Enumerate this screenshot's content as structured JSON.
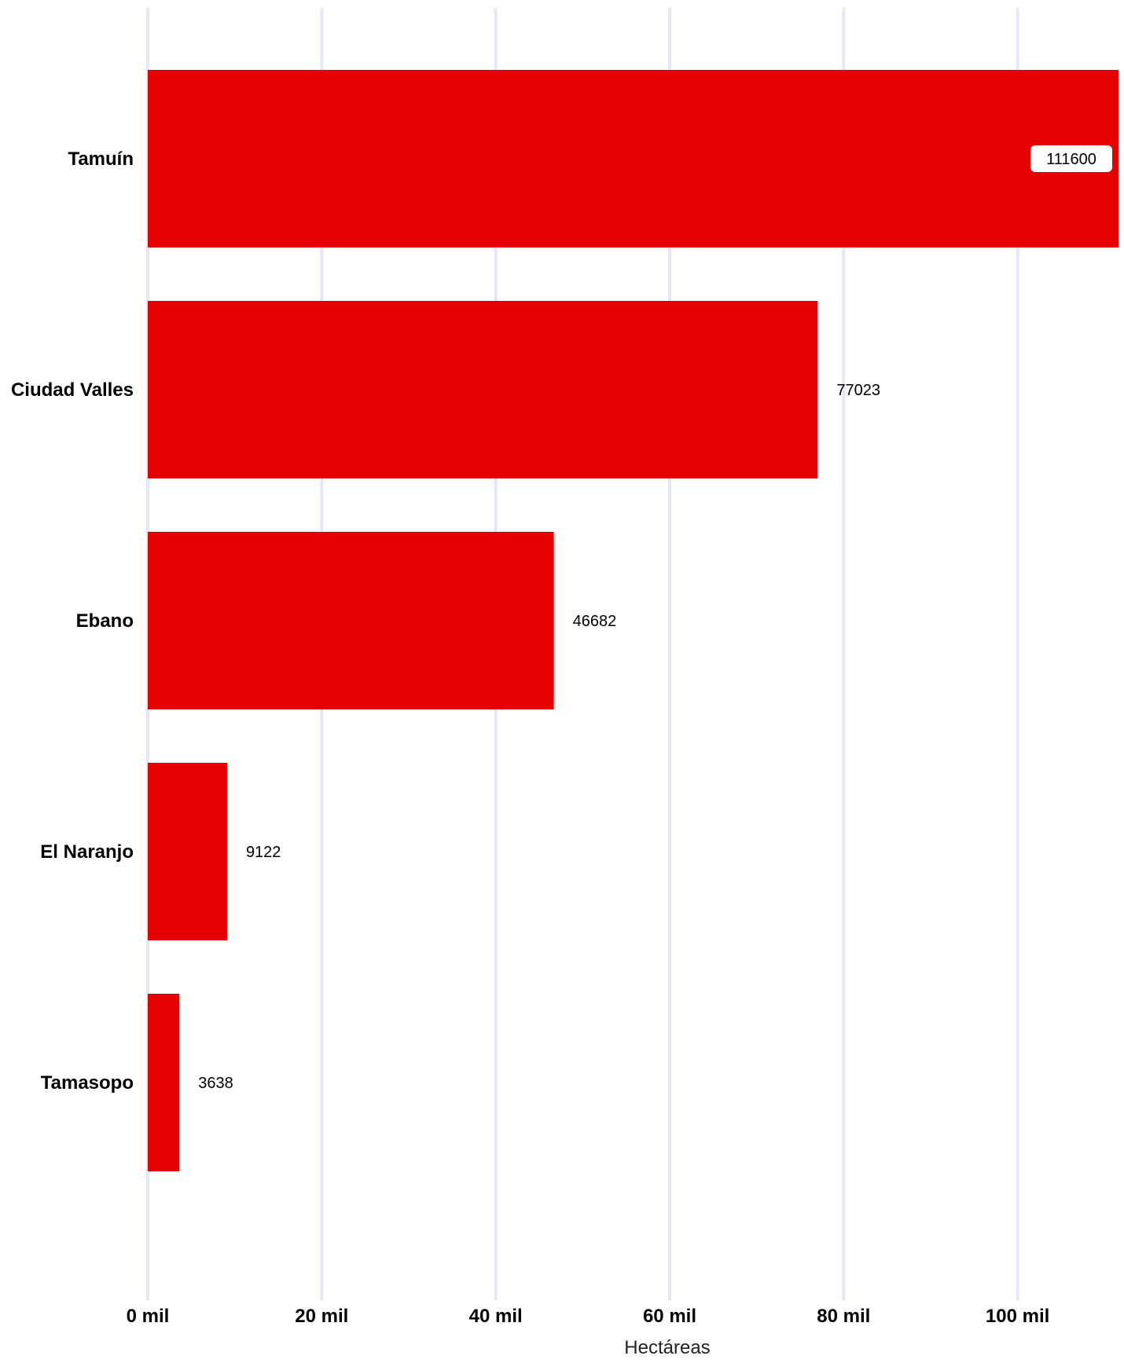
{
  "chart_data": {
    "type": "bar",
    "orientation": "horizontal",
    "categories": [
      "Tamuín",
      "Ciudad Valles",
      "Ebano",
      "El Naranjo",
      "Tamasopo"
    ],
    "values": [
      111600,
      77023,
      46682,
      9122,
      3638
    ],
    "value_labels": [
      "111600",
      "77023",
      "46682",
      "9122",
      "3638"
    ],
    "xlabel": "Hectáreas",
    "ylabel": "",
    "xlim": [
      0,
      111600
    ],
    "x_ticks": [
      {
        "value": 0,
        "label": "0 mil"
      },
      {
        "value": 20000,
        "label": "20 mil"
      },
      {
        "value": 40000,
        "label": "40 mil"
      },
      {
        "value": 60000,
        "label": "60 mil"
      },
      {
        "value": 80000,
        "label": "80 mil"
      },
      {
        "value": 100000,
        "label": "100 mil"
      }
    ],
    "grid": true,
    "legend": "none",
    "colors": {
      "bar": "#e60000",
      "grid": "#e6e6fa",
      "label_box": "#ffffff"
    }
  }
}
